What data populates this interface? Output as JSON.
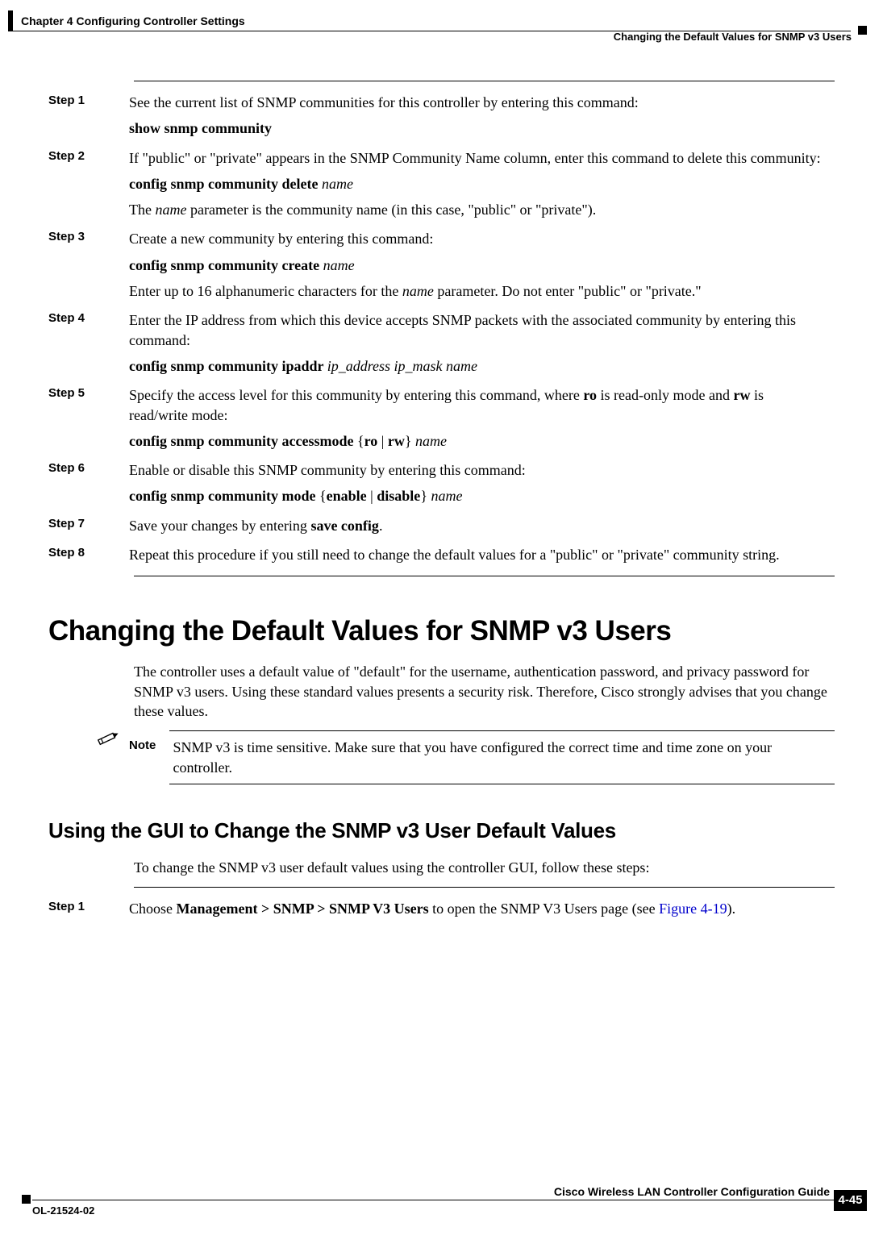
{
  "header": {
    "chapter": "Chapter 4      Configuring Controller Settings",
    "section": "Changing the Default Values for SNMP v3 Users"
  },
  "steps_a": [
    {
      "label": "Step 1",
      "lines": [
        {
          "segs": [
            {
              "t": "See the current list of SNMP communities for this controller by entering this command:"
            }
          ]
        },
        {
          "segs": [
            {
              "t": "show snmp community",
              "b": true
            }
          ]
        }
      ]
    },
    {
      "label": "Step 2",
      "lines": [
        {
          "segs": [
            {
              "t": "If \"public\" or \"private\" appears in the SNMP Community Name column, enter this command to delete this community:"
            }
          ]
        },
        {
          "segs": [
            {
              "t": "config snmp community delete ",
              "b": true
            },
            {
              "t": "name",
              "i": true
            }
          ]
        },
        {
          "segs": [
            {
              "t": "The "
            },
            {
              "t": "name",
              "i": true
            },
            {
              "t": " parameter is the community name (in this case, \"public\" or \"private\")."
            }
          ]
        }
      ]
    },
    {
      "label": "Step 3",
      "lines": [
        {
          "segs": [
            {
              "t": "Create a new community by entering this command:"
            }
          ]
        },
        {
          "segs": [
            {
              "t": "config snmp community create ",
              "b": true
            },
            {
              "t": "name",
              "i": true
            }
          ]
        },
        {
          "segs": [
            {
              "t": "Enter up to 16 alphanumeric characters for the "
            },
            {
              "t": "name",
              "i": true
            },
            {
              "t": " parameter. Do not enter \"public\" or \"private.\""
            }
          ]
        }
      ]
    },
    {
      "label": "Step 4",
      "lines": [
        {
          "segs": [
            {
              "t": "Enter the IP address from which this device accepts SNMP packets with the associated community by entering this command:"
            }
          ]
        },
        {
          "segs": [
            {
              "t": "config snmp community ipaddr ",
              "b": true
            },
            {
              "t": "ip_address ip_mask name",
              "i": true
            }
          ]
        }
      ]
    },
    {
      "label": "Step 5",
      "lines": [
        {
          "segs": [
            {
              "t": "Specify the access level for this community by entering this command, where "
            },
            {
              "t": "ro",
              "b": true
            },
            {
              "t": " is read-only mode and "
            },
            {
              "t": "rw",
              "b": true
            },
            {
              "t": " is read/write mode:"
            }
          ]
        },
        {
          "segs": [
            {
              "t": "config snmp community accessmode ",
              "b": true
            },
            {
              "t": "{"
            },
            {
              "t": "ro",
              "b": true
            },
            {
              "t": " | "
            },
            {
              "t": "rw",
              "b": true
            },
            {
              "t": "} "
            },
            {
              "t": "name",
              "i": true
            }
          ]
        }
      ]
    },
    {
      "label": "Step 6",
      "lines": [
        {
          "segs": [
            {
              "t": "Enable or disable this SNMP community by entering this command:"
            }
          ]
        },
        {
          "segs": [
            {
              "t": "config snmp community mode ",
              "b": true
            },
            {
              "t": "{"
            },
            {
              "t": "enable",
              "b": true
            },
            {
              "t": " | "
            },
            {
              "t": "disable",
              "b": true
            },
            {
              "t": "} "
            },
            {
              "t": "name",
              "i": true
            }
          ]
        }
      ]
    },
    {
      "label": "Step 7",
      "lines": [
        {
          "segs": [
            {
              "t": "Save your changes by entering "
            },
            {
              "t": "save config",
              "b": true
            },
            {
              "t": "."
            }
          ]
        }
      ]
    },
    {
      "label": "Step 8",
      "lines": [
        {
          "segs": [
            {
              "t": "Repeat this procedure if you still need to change the default values for a \"public\" or \"private\" community string."
            }
          ]
        }
      ]
    }
  ],
  "heading1": "Changing the Default Values for SNMP v3 Users",
  "intro_para": "The controller uses a default value of \"default\" for the username, authentication password, and privacy password for SNMP v3 users. Using these standard values presents a security risk. Therefore, Cisco strongly advises that you change these values.",
  "note": {
    "label": "Note",
    "text": "SNMP v3 is time sensitive. Make sure that you have configured the correct time and time zone on your controller."
  },
  "heading2": "Using the GUI to Change the SNMP v3 User Default Values",
  "gui_intro": "To change the SNMP v3 user default values using the controller GUI, follow these steps:",
  "steps_b": [
    {
      "label": "Step 1",
      "lines": [
        {
          "segs": [
            {
              "t": "Choose "
            },
            {
              "t": "Management > SNMP > SNMP V3 Users",
              "b": true
            },
            {
              "t": " to open the SNMP V3 Users page (see "
            },
            {
              "t": "Figure 4-19",
              "link": true
            },
            {
              "t": ")."
            }
          ]
        }
      ]
    }
  ],
  "footer": {
    "guide": "Cisco Wireless LAN Controller Configuration Guide",
    "ol": "OL-21524-02",
    "page": "4-45"
  },
  "colors": {
    "text": "#000000",
    "link": "#0000cc",
    "background": "#ffffff",
    "marker": "#000000"
  }
}
